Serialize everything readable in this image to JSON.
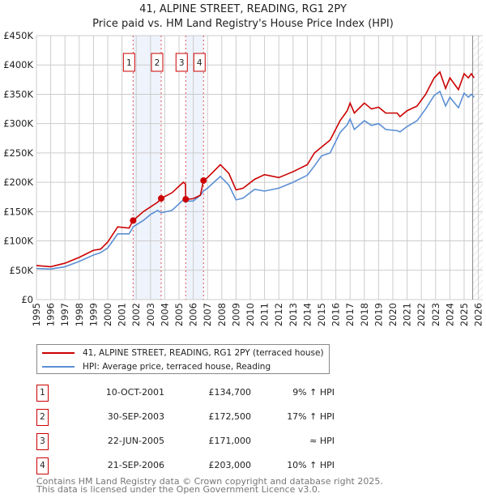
{
  "chart_data": {
    "type": "line",
    "title": "41, ALPINE STREET, READING, RG1 2PY",
    "subtitle": "Price paid vs. HM Land Registry's House Price Index (HPI)",
    "xlabel": "",
    "ylabel": "",
    "xlim": [
      1995,
      2026
    ],
    "ylim": [
      0,
      450
    ],
    "y_ticks": [
      {
        "v": 0,
        "label": "£0"
      },
      {
        "v": 50,
        "label": "£50K"
      },
      {
        "v": 100,
        "label": "£100K"
      },
      {
        "v": 150,
        "label": "£150K"
      },
      {
        "v": 200,
        "label": "£200K"
      },
      {
        "v": 250,
        "label": "£250K"
      },
      {
        "v": 300,
        "label": "£300K"
      },
      {
        "v": 350,
        "label": "£350K"
      },
      {
        "v": 400,
        "label": "£400K"
      },
      {
        "v": 450,
        "label": "£450K"
      }
    ],
    "x_ticks": [
      "1995",
      "1996",
      "1997",
      "1998",
      "1999",
      "2000",
      "2001",
      "2002",
      "2003",
      "2004",
      "2005",
      "2006",
      "2007",
      "2008",
      "2009",
      "2010",
      "2011",
      "2012",
      "2013",
      "2014",
      "2015",
      "2016",
      "2017",
      "2018",
      "2019",
      "2020",
      "2021",
      "2022",
      "2023",
      "2024",
      "2025",
      "2026"
    ],
    "grid": true,
    "forecast_from": 2025.6,
    "x": [
      1995.0,
      1996.0,
      1997.0,
      1998.0,
      1999.0,
      1999.5,
      2000.0,
      2000.7,
      2001.5,
      2001.78,
      2002.5,
      2003.0,
      2003.5,
      2003.75,
      2004.5,
      2005.3,
      2005.45,
      2005.47,
      2006.0,
      2006.5,
      2006.72,
      2007.0,
      2007.9,
      2008.5,
      2009.0,
      2009.5,
      2010.3,
      2011.0,
      2012.0,
      2013.0,
      2014.0,
      2014.5,
      2015.0,
      2015.6,
      2016.3,
      2016.8,
      2017.0,
      2017.3,
      2018.0,
      2018.5,
      2019.0,
      2019.5,
      2020.3,
      2020.5,
      2021.0,
      2021.7,
      2022.3,
      2022.9,
      2023.3,
      2023.7,
      2024.0,
      2024.6,
      2025.0,
      2025.3,
      2025.5,
      2025.7
    ],
    "series": [
      {
        "name": "41, ALPINE STREET, READING, RG1 2PY (terraced house)",
        "color": "#cc0000",
        "values": [
          58,
          56,
          62,
          72,
          84,
          86,
          98,
          124,
          122,
          134.7,
          150,
          158,
          166,
          172.5,
          182,
          200,
          197,
          171,
          172,
          178,
          203,
          208,
          230,
          215,
          187,
          190,
          205,
          213,
          208,
          218,
          230,
          250,
          260,
          272,
          305,
          322,
          335,
          318,
          335,
          325,
          328,
          318,
          318,
          312,
          322,
          330,
          350,
          378,
          388,
          360,
          378,
          358,
          385,
          378,
          385,
          378
        ]
      },
      {
        "name": "HPI: Average price, terraced house, Reading",
        "color": "#5b8fd4",
        "values": [
          53,
          52,
          56,
          65,
          76,
          80,
          88,
          112,
          112,
          124,
          135,
          145,
          152,
          148,
          152,
          170,
          166,
          168,
          168,
          178,
          185,
          190,
          210,
          195,
          170,
          173,
          188,
          185,
          190,
          200,
          212,
          228,
          245,
          250,
          285,
          298,
          308,
          290,
          305,
          297,
          300,
          290,
          288,
          286,
          295,
          305,
          325,
          348,
          355,
          330,
          345,
          327,
          352,
          345,
          350,
          345
        ]
      }
    ],
    "sales": [
      {
        "n": "1",
        "x": 2001.78,
        "date": "10-OCT-2001",
        "value": 134.7,
        "price": "£134,700",
        "hpi": "9% ↑ HPI"
      },
      {
        "n": "2",
        "x": 2003.75,
        "date": "30-SEP-2003",
        "value": 172.5,
        "price": "£172,500",
        "hpi": "17% ↑ HPI"
      },
      {
        "n": "3",
        "x": 2005.47,
        "date": "22-JUN-2005",
        "value": 171.0,
        "price": "£171,000",
        "hpi": "≈ HPI"
      },
      {
        "n": "4",
        "x": 2006.72,
        "date": "21-SEP-2006",
        "value": 203.0,
        "price": "£203,000",
        "hpi": "10% ↑ HPI"
      }
    ]
  },
  "footer": {
    "line1": "Contains HM Land Registry data © Crown copyright and database right 2025.",
    "line2": "This data is licensed under the Open Government Licence v3.0."
  }
}
